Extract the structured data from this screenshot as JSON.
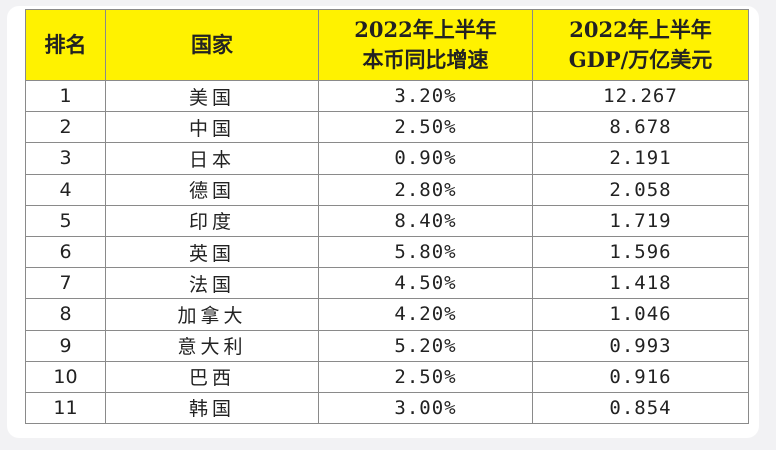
{
  "headers": {
    "rank": "排名",
    "country": "国家",
    "growth_line1": "2022年上半年",
    "growth_line2": "本币同比增速",
    "gdp_line1": "2022年上半年",
    "gdp_line2": "GDP/万亿美元"
  },
  "rows": [
    {
      "rank": "1",
      "country": "美国",
      "growth": "3.20%",
      "gdp": "12.267"
    },
    {
      "rank": "2",
      "country": "中国",
      "growth": "2.50%",
      "gdp": "8.678"
    },
    {
      "rank": "3",
      "country": "日本",
      "growth": "0.90%",
      "gdp": "2.191"
    },
    {
      "rank": "4",
      "country": "德国",
      "growth": "2.80%",
      "gdp": "2.058"
    },
    {
      "rank": "5",
      "country": "印度",
      "growth": "8.40%",
      "gdp": "1.719"
    },
    {
      "rank": "6",
      "country": "英国",
      "growth": "5.80%",
      "gdp": "1.596"
    },
    {
      "rank": "7",
      "country": "法国",
      "growth": "4.50%",
      "gdp": "1.418"
    },
    {
      "rank": "8",
      "country": "加拿大",
      "growth": "4.20%",
      "gdp": "1.046"
    },
    {
      "rank": "9",
      "country": "意大利",
      "growth": "5.20%",
      "gdp": "0.993"
    },
    {
      "rank": "10",
      "country": "巴西",
      "growth": "2.50%",
      "gdp": "0.916"
    },
    {
      "rank": "11",
      "country": "韩国",
      "growth": "3.00%",
      "gdp": "0.854"
    }
  ],
  "colors": {
    "header_background": "#fff200",
    "border": "#8a8a8a"
  }
}
